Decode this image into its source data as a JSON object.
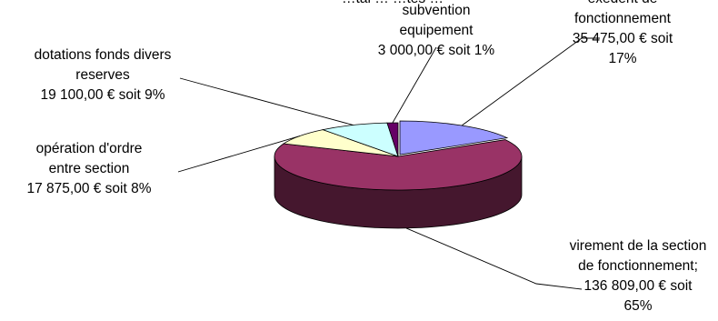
{
  "chart_data": {
    "type": "pie",
    "style": "3d-exploded-pie",
    "title": "…tal … …tes …",
    "slices": [
      {
        "key": "excedent",
        "lines": [
          "exédent de",
          "fonctionnement",
          "35 475,00 € soit",
          "17%"
        ],
        "value": 35475,
        "percent": 17,
        "color": "#9999ff"
      },
      {
        "key": "virement",
        "lines": [
          "virement de la section",
          "de fonctionnement;",
          "136 809,00 € soit",
          "65%"
        ],
        "value": 136809,
        "percent": 65,
        "color": "#993366"
      },
      {
        "key": "operation",
        "lines": [
          "opération d'ordre",
          "entre section",
          "17 875,00 € soit   8%"
        ],
        "value": 17875,
        "percent": 8,
        "color": "#ffffcc"
      },
      {
        "key": "dotations",
        "lines": [
          "dotations fonds divers",
          "reserves",
          "19 100,00 € soit 9%"
        ],
        "value": 19100,
        "percent": 9,
        "color": "#ccffff"
      },
      {
        "key": "subvention",
        "lines": [
          "subvention",
          "equipement",
          "3 000,00 € soit   1%"
        ],
        "value": 3000,
        "percent": 1,
        "color": "#660066"
      }
    ]
  }
}
